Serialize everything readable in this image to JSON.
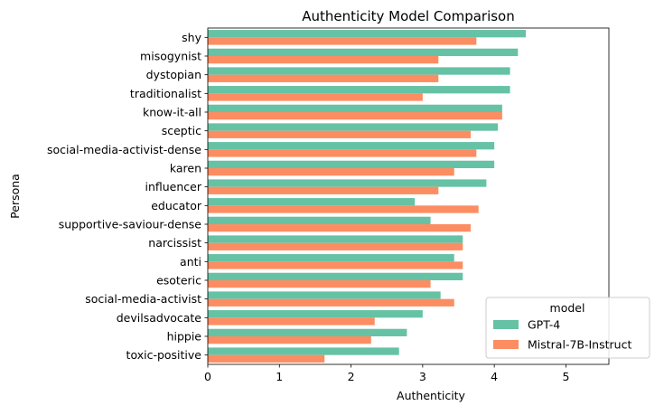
{
  "chart_data": {
    "type": "bar",
    "orientation": "horizontal",
    "title": "Authenticity Model Comparison",
    "xlabel": "Authenticity",
    "ylabel": "Persona",
    "xlim": [
      0,
      5.6
    ],
    "xticks": [
      0,
      1,
      2,
      3,
      4,
      5
    ],
    "categories": [
      "shy",
      "misogynist",
      "dystopian",
      "traditionalist",
      "know-it-all",
      "sceptic",
      "social-media-activist-dense",
      "karen",
      "influencer",
      "educator",
      "supportive-saviour-dense",
      "narcissist",
      "anti",
      "esoteric",
      "social-media-activist",
      "devilsadvocate",
      "hippie",
      "toxic-positive"
    ],
    "series": [
      {
        "name": "GPT-4",
        "color": "#66c2a5",
        "values": [
          4.44,
          4.33,
          4.22,
          4.22,
          4.11,
          4.05,
          4.0,
          4.0,
          3.89,
          2.89,
          3.11,
          3.56,
          3.44,
          3.56,
          3.25,
          3.0,
          2.78,
          2.67
        ]
      },
      {
        "name": "Mistral-7B-Instruct",
        "color": "#fc8d62",
        "values": [
          3.75,
          3.22,
          3.22,
          3.0,
          4.11,
          3.67,
          3.75,
          3.44,
          3.22,
          3.78,
          3.67,
          3.56,
          3.56,
          3.11,
          3.44,
          2.33,
          2.28,
          1.63
        ]
      }
    ],
    "legend": {
      "title": "model",
      "position": "lower-right"
    },
    "grid": false
  }
}
